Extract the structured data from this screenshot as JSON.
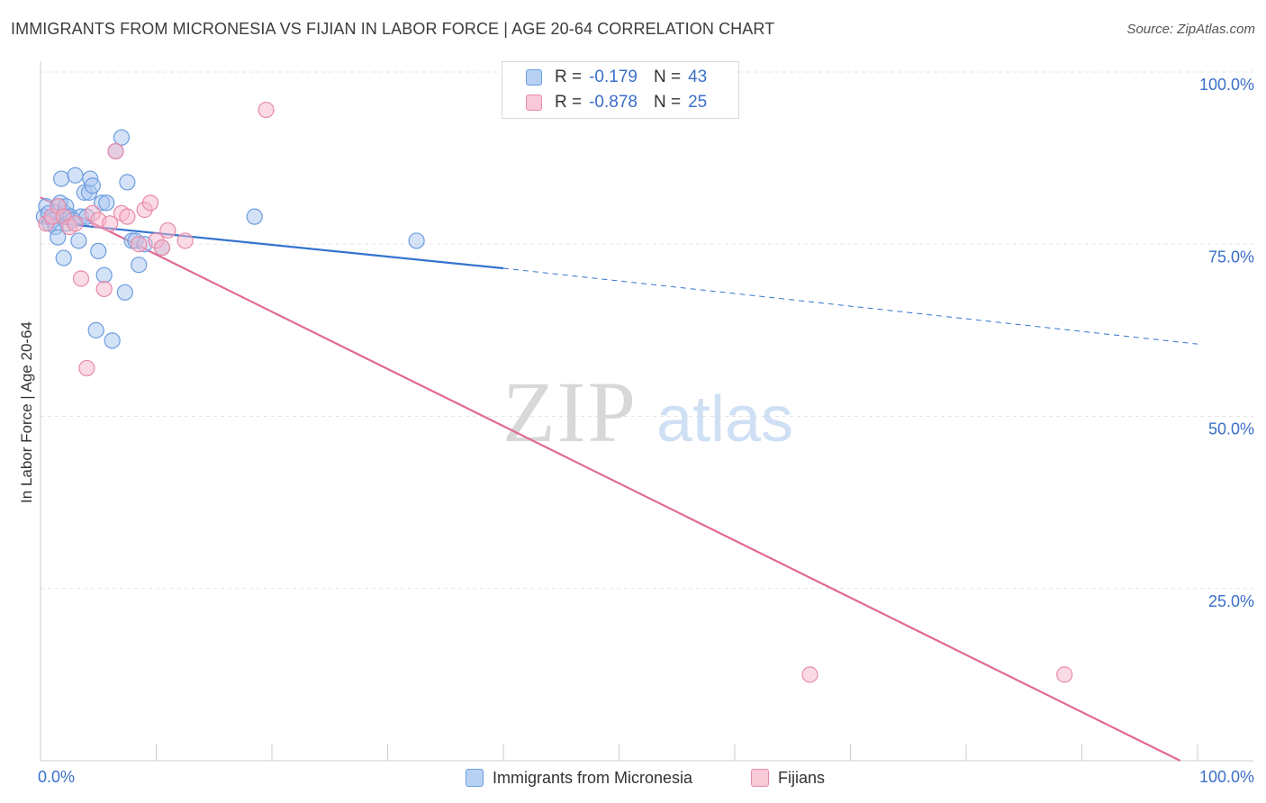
{
  "header": {
    "title": "IMMIGRANTS FROM MICRONESIA VS FIJIAN IN LABOR FORCE | AGE 20-64 CORRELATION CHART",
    "source": "Source: ZipAtlas.com"
  },
  "watermark": {
    "zip": "ZIP",
    "atlas": "atlas"
  },
  "legend": {
    "r_label": "R =",
    "n_label": "N =",
    "rows": [
      {
        "r": "-0.179",
        "n": "43"
      },
      {
        "r": "-0.878",
        "n": "25"
      }
    ]
  },
  "colors": {
    "blue_fill": "#a9c6f0",
    "blue_stroke": "#6b9de0",
    "blue_line": "#3474cf",
    "pink_fill": "#f5b8cc",
    "pink_stroke": "#e88aa8",
    "pink_line": "#e06a97",
    "tick_text": "#3a6fc9",
    "grid": "#e4e4e4"
  },
  "chart_data": {
    "type": "scatter",
    "title": "IMMIGRANTS FROM MICRONESIA VS FIJIAN IN LABOR FORCE | AGE 20-64 CORRELATION CHART",
    "xlabel": "",
    "ylabel": "In Labor Force | Age 20-64",
    "xlim": [
      0,
      100
    ],
    "ylim": [
      0,
      100
    ],
    "x_tick_labels": [
      "0.0%",
      "100.0%"
    ],
    "y_ticks": [
      25,
      50,
      75,
      100
    ],
    "y_tick_labels": [
      "25.0%",
      "50.0%",
      "75.0%",
      "100.0%"
    ],
    "grid": true,
    "legend_position": "top-center",
    "series": [
      {
        "name": "Immigrants from Micronesia",
        "color": "#a9c6f0",
        "x": [
          0.3,
          0.5,
          0.7,
          0.8,
          1.0,
          1.1,
          1.3,
          1.5,
          1.6,
          1.7,
          1.8,
          2.0,
          2.1,
          2.2,
          2.3,
          2.4,
          2.6,
          2.8,
          3.0,
          3.3,
          3.5,
          3.8,
          4.0,
          4.2,
          4.3,
          4.5,
          4.8,
          5.0,
          5.3,
          5.5,
          5.7,
          6.2,
          6.5,
          7.0,
          7.3,
          7.5,
          7.9,
          8.2,
          8.5,
          9.0,
          10.5,
          18.5,
          32.5
        ],
        "y": [
          79.0,
          80.5,
          79.5,
          78.0,
          79.0,
          78.5,
          77.5,
          76.0,
          80.5,
          81.0,
          84.5,
          73.0,
          79.5,
          80.5,
          78.0,
          79.0,
          79.0,
          78.5,
          85.0,
          75.5,
          79.0,
          82.5,
          79.0,
          82.5,
          84.5,
          83.5,
          62.5,
          74.0,
          81.0,
          70.5,
          81.0,
          61.0,
          88.5,
          90.5,
          68.0,
          84.0,
          75.5,
          75.5,
          72.0,
          75.0,
          74.5,
          79.0,
          75.5
        ]
      },
      {
        "name": "Fijians",
        "color": "#f5b8cc",
        "x": [
          0.5,
          1.0,
          1.5,
          2.0,
          2.5,
          3.0,
          3.5,
          4.0,
          4.5,
          5.0,
          5.5,
          6.0,
          6.5,
          7.0,
          7.5,
          8.5,
          9.0,
          9.5,
          10.0,
          10.5,
          11.0,
          12.5,
          19.5,
          66.5,
          88.5
        ],
        "y": [
          78.0,
          79.0,
          80.5,
          79.0,
          77.5,
          78.0,
          70.0,
          57.0,
          79.5,
          78.5,
          68.5,
          78.0,
          88.5,
          79.5,
          79.0,
          75.0,
          80.0,
          81.0,
          75.5,
          74.5,
          77.0,
          75.5,
          94.5,
          12.5,
          12.5
        ]
      }
    ],
    "trend_lines": [
      {
        "name": "Immigrants from Micronesia",
        "x": [
          0,
          40,
          100
        ],
        "y": [
          78.3,
          71.5,
          60.5
        ],
        "dashed_from_x": 40
      },
      {
        "name": "Fijians",
        "x": [
          0,
          98.5
        ],
        "y": [
          81.8,
          0
        ]
      }
    ]
  }
}
